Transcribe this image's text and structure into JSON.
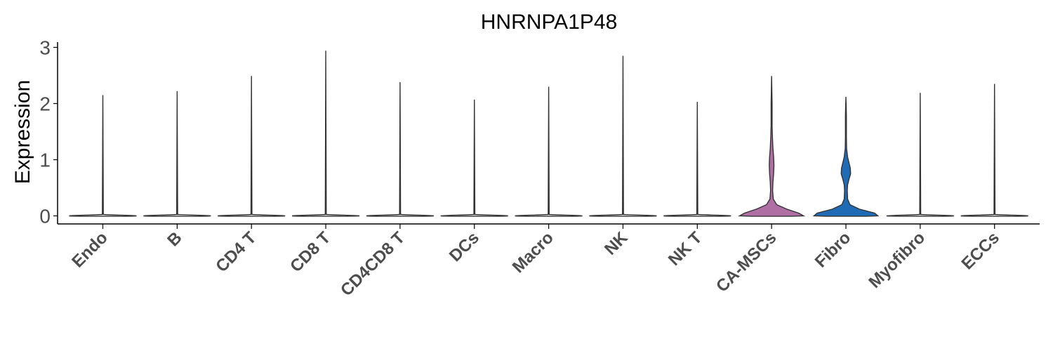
{
  "chart_data": {
    "type": "violin",
    "title": "HNRNPA1P48",
    "xlabel": "",
    "ylabel": "Expression",
    "ylim": [
      -0.15,
      3.1
    ],
    "yticks": [
      0,
      1,
      2,
      3
    ],
    "grid": false,
    "legend": "none",
    "categories": [
      "Endo",
      "B",
      "CD4 T",
      "CD8 T",
      "CD4CD8 T",
      "DCs",
      "Macro",
      "NK",
      "NK T",
      "CA-MSCs",
      "Fibro",
      "Myofibro",
      "ECCs"
    ],
    "max_values": [
      2.15,
      2.22,
      2.49,
      2.94,
      2.38,
      2.07,
      2.3,
      2.85,
      2.03,
      2.49,
      2.12,
      2.19,
      2.35
    ],
    "fill_colors": [
      "#ffffff",
      "#ffffff",
      "#ffffff",
      "#ffffff",
      "#ffffff",
      "#ffffff",
      "#ffffff",
      "#ffffff",
      "#ffffff",
      "#b06fa4",
      "#1f6bb5",
      "#ffffff",
      "#ffffff"
    ],
    "density_profiles": [
      [],
      [],
      [],
      [],
      [],
      [],
      [],
      [],
      [],
      [
        [
          0.0,
          0.95
        ],
        [
          0.05,
          0.8
        ],
        [
          0.12,
          0.45
        ],
        [
          0.2,
          0.15
        ],
        [
          0.3,
          0.05
        ],
        [
          0.45,
          0.03
        ],
        [
          0.6,
          0.04
        ],
        [
          0.75,
          0.06
        ],
        [
          0.9,
          0.07
        ],
        [
          1.05,
          0.06
        ],
        [
          1.2,
          0.04
        ],
        [
          1.4,
          0.025
        ],
        [
          1.6,
          0.012
        ],
        [
          1.8,
          0.006
        ],
        [
          2.0,
          0.003
        ]
      ],
      [
        [
          0.0,
          0.95
        ],
        [
          0.05,
          0.85
        ],
        [
          0.12,
          0.4
        ],
        [
          0.2,
          0.12
        ],
        [
          0.3,
          0.05
        ],
        [
          0.45,
          0.04
        ],
        [
          0.55,
          0.05
        ],
        [
          0.65,
          0.09
        ],
        [
          0.75,
          0.14
        ],
        [
          0.85,
          0.13
        ],
        [
          0.95,
          0.09
        ],
        [
          1.05,
          0.05
        ],
        [
          1.2,
          0.02
        ],
        [
          1.4,
          0.01
        ],
        [
          1.6,
          0.006
        ],
        [
          1.8,
          0.003
        ]
      ],
      [],
      []
    ]
  }
}
